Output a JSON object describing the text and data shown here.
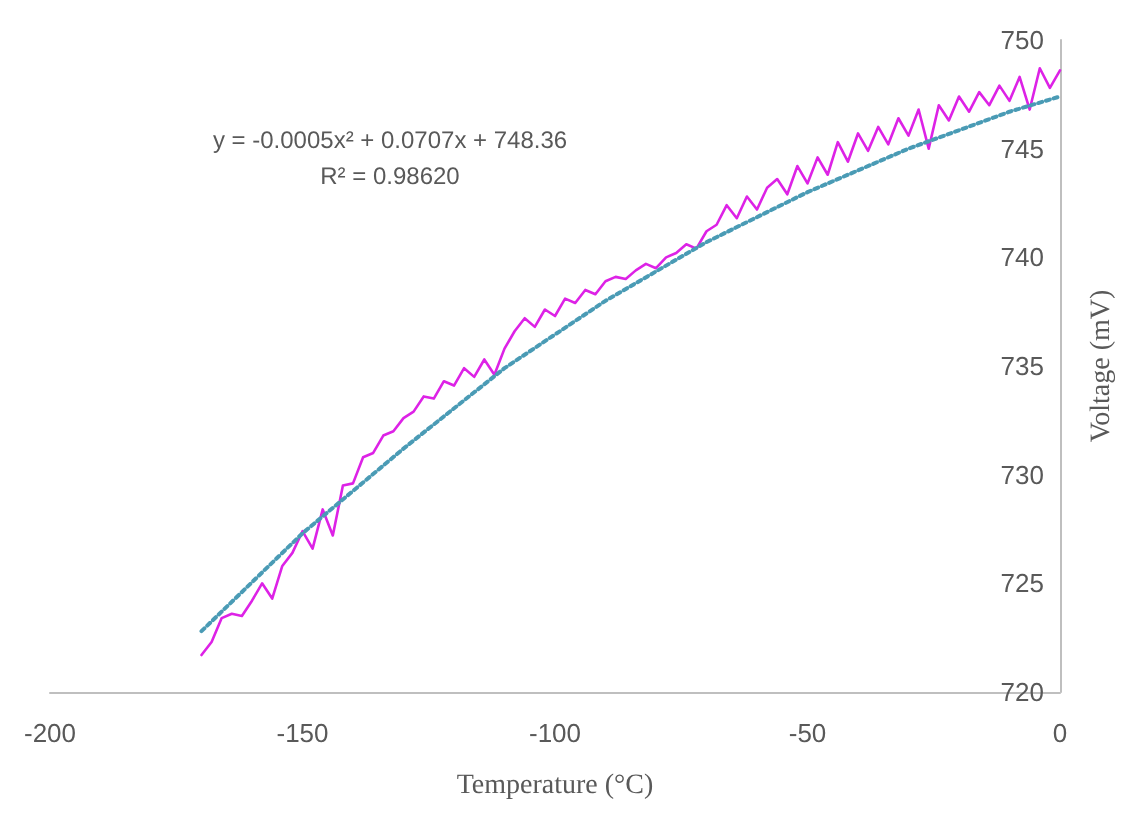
{
  "chart_data": {
    "type": "line",
    "xlabel": "Temperature (°C)",
    "ylabel": "Voltage (mV)",
    "annotations": [
      "y = -0.0005x² + 0.0707x + 748.36",
      "R² = 0.98620"
    ],
    "xlim": [
      -200,
      0
    ],
    "xticks": [
      -200,
      -150,
      -100,
      -50,
      0
    ],
    "ylim": [
      720,
      750
    ],
    "yticks": [
      720,
      725,
      730,
      735,
      740,
      745,
      750
    ],
    "grid": false,
    "marker": "none",
    "series": [
      {
        "color": "#dd22e6",
        "line_style": "solid",
        "x": [
          -170,
          -168,
          -166,
          -164,
          -162,
          -160,
          -158,
          -156,
          -154,
          -152,
          -150,
          -148,
          -146,
          -144,
          -142,
          -140,
          -138,
          -136,
          -134,
          -132,
          -130,
          -128,
          -126,
          -124,
          -122,
          -120,
          -118,
          -116,
          -114,
          -112,
          -110,
          -108,
          -106,
          -104,
          -102,
          -100,
          -98,
          -96,
          -94,
          -92,
          -90,
          -88,
          -86,
          -84,
          -82,
          -80,
          -78,
          -76,
          -74,
          -72,
          -70,
          -68,
          -66,
          -64,
          -62,
          -60,
          -58,
          -56,
          -54,
          -52,
          -50,
          -48,
          -46,
          -44,
          -42,
          -40,
          -38,
          -36,
          -34,
          -32,
          -30,
          -28,
          -26,
          -24,
          -22,
          -20,
          -18,
          -16,
          -14,
          -12,
          -10,
          -8,
          -6,
          -4,
          -2,
          0
        ],
        "values": [
          721.7,
          722.3,
          723.4,
          723.6,
          723.5,
          724.2,
          725,
          724.3,
          725.8,
          726.4,
          727.4,
          726.6,
          728.4,
          727.2,
          729.5,
          729.6,
          730.8,
          731,
          731.8,
          732,
          732.6,
          732.9,
          733.6,
          733.5,
          734.3,
          734.1,
          734.9,
          734.5,
          735.3,
          734.6,
          735.8,
          736.6,
          737.2,
          736.8,
          737.6,
          737.3,
          738.1,
          737.9,
          738.5,
          738.3,
          738.9,
          739.1,
          739,
          739.4,
          739.7,
          739.5,
          740,
          740.2,
          740.6,
          740.4,
          741.2,
          741.5,
          742.4,
          741.8,
          742.8,
          742.2,
          743.2,
          743.6,
          742.9,
          744.2,
          743.4,
          744.6,
          743.8,
          745.3,
          744.4,
          745.7,
          744.9,
          746,
          745.2,
          746.4,
          745.6,
          746.8,
          745,
          747,
          746.3,
          747.4,
          746.7,
          747.6,
          747,
          747.9,
          747.2,
          748.3,
          746.8,
          748.7,
          747.8,
          748.6
        ]
      },
      {
        "type": "line",
        "color": "#4a9bb5",
        "line_style": "dotted",
        "x": [
          -170,
          -150,
          -130,
          -110,
          -90,
          -70,
          -50,
          -30,
          -10,
          0
        ],
        "values": [
          722.8,
          727.3,
          731.2,
          734.9,
          738,
          740.7,
          743,
          745,
          746.7,
          747.4
        ]
      }
    ]
  }
}
